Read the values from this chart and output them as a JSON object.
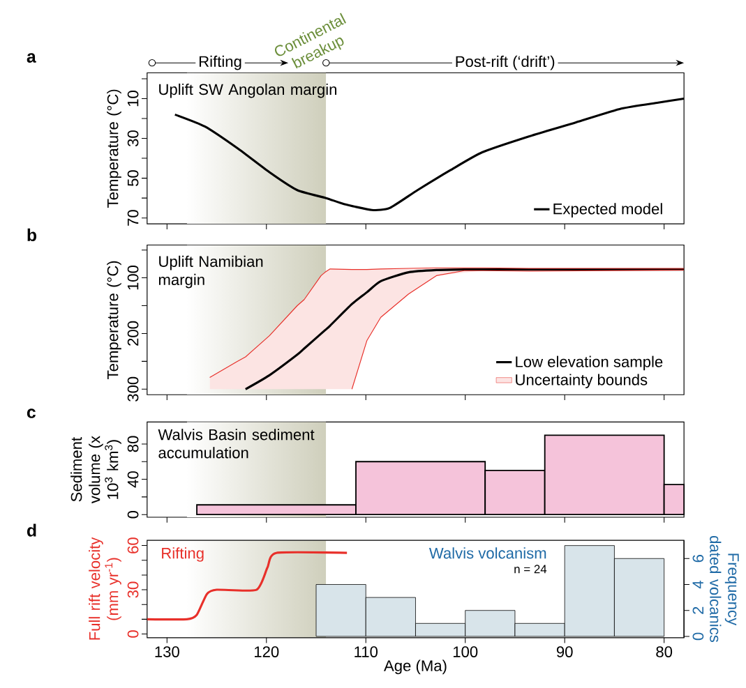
{
  "chart_data": [
    {
      "type": "line",
      "title": "Uplift SW Angolan margin",
      "ylabel": "Temperature (°C)",
      "annotations": [
        "a",
        "Rifting",
        "Post-rift (‘drift’)"
      ],
      "series": [
        {
          "name": "Expected model",
          "color": "#000000",
          "x": [
            129.2,
            126.2,
            122.9,
            119.7,
            116.9,
            114.0,
            112.2,
            109.4,
            107.6,
            104.8,
            101.5,
            98.3,
            93.6,
            88.9,
            84.3,
            80.6,
            78
          ],
          "values": [
            18,
            24,
            35,
            47,
            56,
            60,
            63,
            66,
            65,
            56,
            46,
            37,
            29,
            22,
            15,
            12,
            10
          ]
        }
      ],
      "xlim": [
        132,
        78
      ],
      "xticks": [
        130,
        120,
        110,
        100,
        90,
        80
      ],
      "ylim": [
        73,
        -3
      ],
      "yticks": [
        {
          "value": 0,
          "label": null
        },
        10,
        {
          "value": 20,
          "label": null
        },
        30,
        {
          "value": 40,
          "label": null
        },
        50,
        {
          "value": 60,
          "label": null
        },
        70
      ],
      "legend": "bottom right",
      "tick_labels": "y",
      "bands": [
        {
          "axis": "x",
          "from": 128,
          "to": 114,
          "label": "Continental breakup",
          "color": "#cfcfbc"
        }
      ]
    },
    {
      "type": "line",
      "title": "Uplift Namibian margin",
      "ylabel": "Temperature (°C)",
      "annotations": [
        "b"
      ],
      "series": [
        {
          "name": "Low elevation sample",
          "color": "#000000",
          "x": [
            122.1,
            119.7,
            116.9,
            116.2,
            114.1,
            113.6,
            111.4,
            109.9,
            108.5,
            105.7,
            102.9,
            100.1,
            98.2,
            93.6,
            78
          ],
          "values": [
            300,
            275,
            238,
            227,
            194,
            186,
            147,
            126,
            106,
            90,
            86,
            85,
            85,
            85,
            85
          ]
        },
        {
          "name": "Uncertainty bounds",
          "color": "#e8302a",
          "x": [
            125.7,
            122.9,
            122.1,
            119.7,
            116.9,
            116.2,
            114.5,
            114.1,
            113.6,
            111.4,
            109.9,
            108.5,
            105.7,
            102.9,
            98.2,
            93.6,
            78
          ],
          "values": [
            null,
            null,
            null,
            null,
            null,
            null,
            null,
            null,
            null,
            null,
            null,
            null,
            null,
            null,
            null,
            null,
            null
          ],
          "lower": [
            279,
            250,
            242,
            204,
            150,
            139,
            96,
            90,
            84,
            85,
            85,
            84,
            83,
            82,
            82,
            83,
            83
          ],
          "upper": [
            300,
            300,
            300,
            300,
            300,
            300,
            300,
            300,
            300,
            300,
            213,
            171,
            129,
            96,
            87,
            88,
            86
          ]
        },
        {
          "color": "#e8302a",
          "x": [
            125.7,
            122.9,
            122.1,
            119.7,
            116.9,
            116.2,
            114.5,
            114.1,
            113.6,
            111.4,
            109.9,
            108.5,
            105.7,
            102.9,
            100.1,
            98.2,
            93.6,
            78
          ],
          "values": [
            279,
            250,
            242,
            204,
            150,
            139,
            96,
            90,
            84,
            85,
            85,
            84,
            83,
            82,
            82,
            82,
            83,
            83
          ]
        },
        {
          "color": "#e8302a",
          "x": [
            111.4,
            109.9,
            108.5,
            105.7,
            102.9,
            100.1,
            98.2,
            93.6,
            78
          ],
          "values": [
            300,
            213,
            171,
            129,
            96,
            87,
            87,
            88,
            86
          ]
        }
      ],
      "xlim": [
        132,
        78
      ],
      "xticks": [
        130,
        120,
        110,
        100,
        90,
        80
      ],
      "ylim": [
        310,
        41
      ],
      "yticks": [
        {
          "value": 50,
          "label": null
        },
        100,
        {
          "value": 150,
          "label": null
        },
        200,
        {
          "value": 250,
          "label": null
        },
        300
      ],
      "legend": "bottom right",
      "tick_labels": "y",
      "bands": [
        {
          "axis": "x",
          "from": 128,
          "to": 114,
          "color": "#cfcfbc"
        }
      ]
    },
    {
      "type": "histogram",
      "title": "Walvis Basin sediment accumulation",
      "ylabel": "Sediment volume (x 10$^{3}$ km$^{3}$)",
      "annotations": [
        "c"
      ],
      "bins": [
        127,
        111,
        98,
        92,
        80,
        78
      ],
      "values": [
        11,
        60,
        50,
        90,
        34
      ],
      "color": "#f5c3da",
      "xlim": [
        132,
        78
      ],
      "xticks": [
        130,
        120,
        110,
        100,
        90,
        80
      ],
      "ylim": [
        -3,
        105
      ],
      "yticks": [
        0,
        {
          "value": 20,
          "label": null
        },
        40,
        {
          "value": 60,
          "label": null
        },
        80
      ],
      "tick_labels": "y",
      "bands": [
        {
          "axis": "x",
          "from": 128,
          "to": 114,
          "color": "#cfcfbc"
        }
      ]
    },
    {
      "type": "line",
      "xlabel": "Age (Ma)",
      "ylabel": "Full rift velocity (mm yr$^{-1}$)",
      "y2label": "Frequency dated volcanics",
      "annotations": [
        "d",
        "n = 24"
      ],
      "legend": false,
      "series": [
        {
          "name": "Rifting",
          "color": "#e8302a",
          "x": [
            132,
            128,
            127,
            126,
            125,
            121,
            119.9,
            119,
            111.9
          ],
          "values": [
            10,
            10,
            13,
            27,
            30,
            30,
            45,
            55,
            55
          ]
        },
        {
          "name": "Walvis volcanism",
          "type": "histogram",
          "axis": "y2",
          "color": "#d8e4ea",
          "bins": [
            115,
            110,
            105,
            100,
            95,
            90,
            85,
            80
          ],
          "values": [
            4,
            3,
            1,
            2,
            1,
            7,
            6
          ]
        }
      ],
      "xlim": [
        132,
        78
      ],
      "xticks": [
        130,
        120,
        110,
        100,
        90,
        80
      ],
      "ylim": [
        -2.5,
        63.5
      ],
      "yticks": [
        0,
        {
          "value": 10,
          "label": null
        },
        {
          "value": 20,
          "label": null
        },
        30,
        {
          "value": 40,
          "label": null
        },
        {
          "value": 50,
          "label": null
        },
        60
      ],
      "y2lim": [
        -0.1,
        7.4
      ],
      "y2ticks": [
        0,
        2,
        4,
        6
      ],
      "bands": [
        {
          "axis": "x",
          "from": 128,
          "to": 114,
          "color": "#cfcfbc"
        }
      ]
    }
  ]
}
